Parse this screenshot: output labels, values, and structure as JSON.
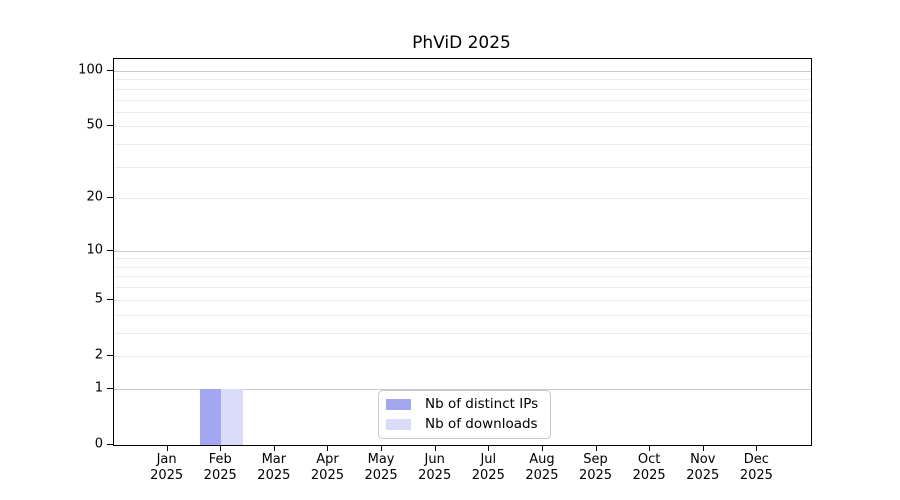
{
  "chart_data": {
    "type": "bar",
    "title": "PhViD 2025",
    "xlabel": "",
    "ylabel": "",
    "yscale": "log1p",
    "ylim": [
      0,
      117
    ],
    "yticks_labeled": [
      0,
      1,
      2,
      5,
      10,
      20,
      50,
      100
    ],
    "y_major_gridlines": [
      1,
      10,
      100
    ],
    "y_minor_gridlines": [
      2,
      3,
      4,
      5,
      6,
      7,
      8,
      9,
      20,
      30,
      40,
      50,
      60,
      70,
      80,
      90
    ],
    "grid": "horizontal-only",
    "categories": [
      "Jan 2025",
      "Feb 2025",
      "Mar 2025",
      "Apr 2025",
      "May 2025",
      "Jun 2025",
      "Jul 2025",
      "Aug 2025",
      "Sep 2025",
      "Oct 2025",
      "Nov 2025",
      "Dec 2025"
    ],
    "series": [
      {
        "name": "Nb of distinct IPs",
        "color": "#a3a7f0",
        "values": [
          0,
          1,
          0,
          0,
          0,
          0,
          0,
          0,
          0,
          0,
          0,
          0
        ]
      },
      {
        "name": "Nb of downloads",
        "color": "#d9dbf8",
        "values": [
          0,
          1,
          0,
          0,
          0,
          0,
          0,
          0,
          0,
          0,
          0,
          0
        ]
      }
    ],
    "legend": {
      "position": "lower center"
    },
    "colors": {
      "axis": "#000000",
      "major_grid": "#c9c9c9",
      "minor_grid": "#ececec",
      "legend_border": "#c8c8c8",
      "background": "#ffffff"
    }
  }
}
